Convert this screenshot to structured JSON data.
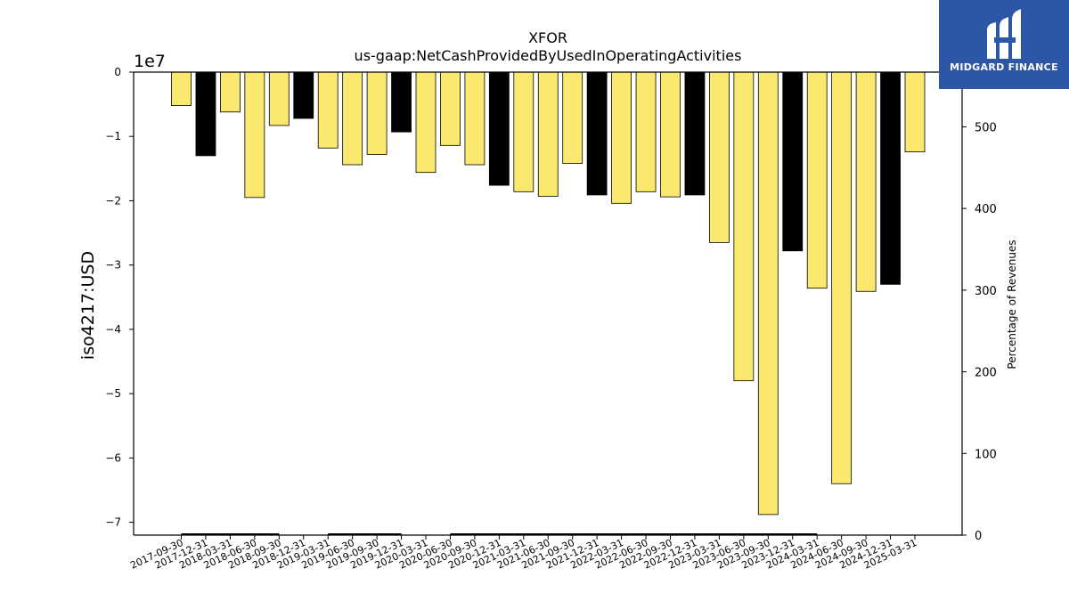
{
  "brand": {
    "name": "MIDGARD FINANCE",
    "color": "#2d57a6"
  },
  "chart_data": {
    "type": "bar",
    "title": "XFOR",
    "subtitle": "us-gaap:NetCashProvidedByUsedInOperatingActivities",
    "ylabel": "iso4217:USD",
    "y_multiplier": "1e7",
    "ylim": [
      -7.2,
      0
    ],
    "yticks": [
      0,
      -1,
      -2,
      -3,
      -4,
      -5,
      -6,
      -7
    ],
    "y2label": "Percentage of Revenues",
    "y2lim": [
      0,
      567
    ],
    "y2ticks": [
      0,
      100,
      200,
      300,
      400,
      500
    ],
    "categories": [
      "2017-09-30",
      "2017-12-31",
      "2018-03-31",
      "2018-06-30",
      "2018-09-30",
      "2018-12-31",
      "2019-03-31",
      "2019-06-30",
      "2019-09-30",
      "2019-12-31",
      "2020-03-31",
      "2020-06-30",
      "2020-09-30",
      "2020-12-31",
      "2021-03-31",
      "2021-06-30",
      "2021-09-30",
      "2021-12-31",
      "2022-03-31",
      "2022-06-30",
      "2022-09-30",
      "2022-12-31",
      "2023-03-31",
      "2023-06-30",
      "2023-09-30",
      "2023-12-31",
      "2024-03-31",
      "2024-06-30",
      "2024-09-30",
      "2024-12-31",
      "2025-03-31"
    ],
    "values": [
      -0.52,
      -1.3,
      -0.62,
      -1.95,
      -0.83,
      -0.72,
      -1.18,
      -1.44,
      -1.28,
      -0.93,
      -1.56,
      -1.14,
      -1.44,
      -1.76,
      -1.86,
      -1.93,
      -1.42,
      -1.91,
      -2.04,
      -1.86,
      -1.94,
      -1.91,
      -2.65,
      -4.8,
      -6.88,
      -2.78,
      -3.36,
      -6.4,
      -3.41,
      -3.3,
      -1.24
    ],
    "bar_colors": [
      "#fbe96f",
      "#000000",
      "#fbe96f",
      "#fbe96f",
      "#fbe96f",
      "#000000",
      "#fbe96f",
      "#fbe96f",
      "#fbe96f",
      "#000000",
      "#fbe96f",
      "#fbe96f",
      "#fbe96f",
      "#000000",
      "#fbe96f",
      "#fbe96f",
      "#fbe96f",
      "#000000",
      "#fbe96f",
      "#fbe96f",
      "#fbe96f",
      "#000000",
      "#fbe96f",
      "#fbe96f",
      "#fbe96f",
      "#000000",
      "#fbe96f",
      "#fbe96f",
      "#fbe96f",
      "#000000",
      "#fbe96f"
    ],
    "line_segments": [
      [
        0,
        4
      ],
      [
        6,
        9
      ],
      [
        11,
        26
      ]
    ],
    "grid": false,
    "legend": "none"
  }
}
